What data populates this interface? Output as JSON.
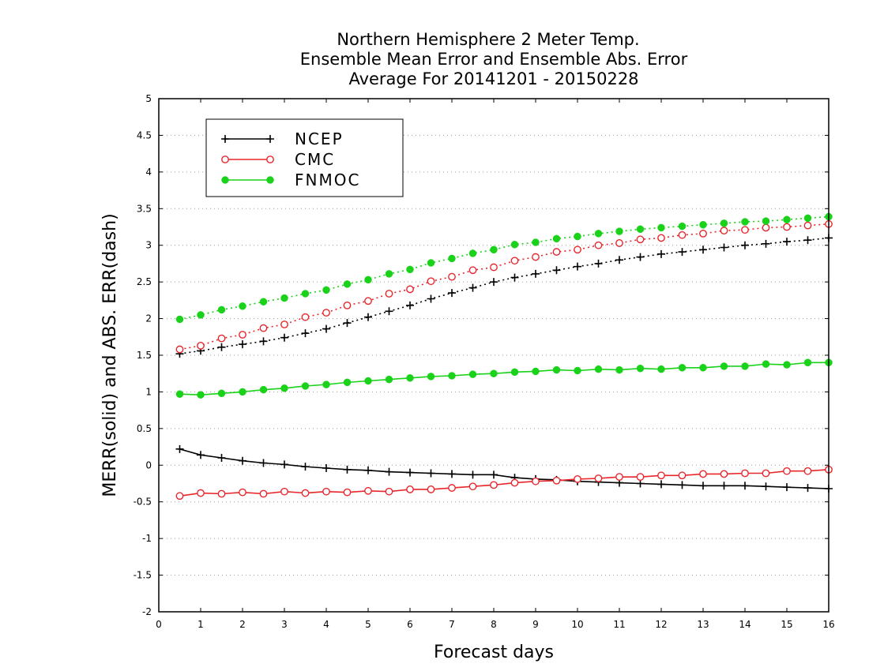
{
  "chart_data": {
    "type": "line",
    "title": [
      "Northern Hemisphere 2 Meter Temp.",
      "Ensemble Mean Error and Ensemble Abs. Error",
      "Average For 20141201 - 20150228"
    ],
    "xlabel": "Forecast days",
    "ylabel": "MERR(solid) and ABS. ERR(dash)",
    "xlim": [
      0,
      16
    ],
    "ylim": [
      -2,
      5
    ],
    "xticks": [
      0,
      1,
      2,
      3,
      4,
      5,
      6,
      7,
      8,
      9,
      10,
      11,
      12,
      13,
      14,
      15,
      16
    ],
    "yticks": [
      -2,
      -1.5,
      -1,
      -0.5,
      0,
      0.5,
      1,
      1.5,
      2,
      2.5,
      3,
      3.5,
      4,
      4.5,
      5
    ],
    "grid": "dotted horizontal",
    "legend_position": "top-left",
    "x": [
      0.5,
      1,
      1.5,
      2,
      2.5,
      3,
      3.5,
      4,
      4.5,
      5,
      5.5,
      6,
      6.5,
      7,
      7.5,
      8,
      8.5,
      9,
      9.5,
      10,
      10.5,
      11,
      11.5,
      12,
      12.5,
      13,
      13.5,
      14,
      14.5,
      15,
      15.5,
      16
    ],
    "series": [
      {
        "name": "NCEP",
        "color": "#000000",
        "marker": "plus",
        "merr": [
          0.22,
          0.14,
          0.1,
          0.06,
          0.03,
          0.01,
          -0.02,
          -0.04,
          -0.06,
          -0.07,
          -0.09,
          -0.1,
          -0.11,
          -0.12,
          -0.13,
          -0.13,
          -0.17,
          -0.19,
          -0.2,
          -0.22,
          -0.23,
          -0.24,
          -0.25,
          -0.26,
          -0.27,
          -0.28,
          -0.28,
          -0.28,
          -0.29,
          -0.3,
          -0.31,
          -0.32
        ],
        "abserr": [
          1.52,
          1.56,
          1.61,
          1.65,
          1.69,
          1.74,
          1.8,
          1.86,
          1.94,
          2.02,
          2.1,
          2.18,
          2.27,
          2.35,
          2.42,
          2.5,
          2.56,
          2.61,
          2.66,
          2.71,
          2.75,
          2.8,
          2.84,
          2.88,
          2.91,
          2.94,
          2.97,
          3.0,
          3.02,
          3.05,
          3.07,
          3.1
        ]
      },
      {
        "name": "CMC",
        "color": "#e8262c",
        "marker": "open-circle",
        "merr": [
          -0.42,
          -0.38,
          -0.39,
          -0.37,
          -0.39,
          -0.36,
          -0.38,
          -0.36,
          -0.37,
          -0.35,
          -0.36,
          -0.33,
          -0.33,
          -0.31,
          -0.29,
          -0.27,
          -0.24,
          -0.22,
          -0.21,
          -0.19,
          -0.18,
          -0.16,
          -0.16,
          -0.14,
          -0.14,
          -0.12,
          -0.12,
          -0.11,
          -0.11,
          -0.08,
          -0.08,
          -0.06
        ],
        "abserr": [
          1.58,
          1.63,
          1.73,
          1.78,
          1.87,
          1.92,
          2.02,
          2.08,
          2.18,
          2.24,
          2.34,
          2.4,
          2.51,
          2.57,
          2.66,
          2.7,
          2.79,
          2.84,
          2.91,
          2.94,
          3.0,
          3.03,
          3.08,
          3.1,
          3.14,
          3.16,
          3.2,
          3.21,
          3.24,
          3.25,
          3.27,
          3.29
        ]
      },
      {
        "name": "FNMOC",
        "color": "#19d219",
        "marker": "filled-circle",
        "merr": [
          0.97,
          0.96,
          0.98,
          1.0,
          1.03,
          1.05,
          1.08,
          1.1,
          1.13,
          1.15,
          1.17,
          1.19,
          1.21,
          1.22,
          1.24,
          1.25,
          1.27,
          1.28,
          1.3,
          1.29,
          1.31,
          1.3,
          1.32,
          1.31,
          1.33,
          1.33,
          1.35,
          1.35,
          1.38,
          1.37,
          1.4,
          1.4
        ],
        "abserr": [
          1.99,
          2.05,
          2.12,
          2.17,
          2.23,
          2.28,
          2.34,
          2.39,
          2.47,
          2.53,
          2.61,
          2.67,
          2.76,
          2.82,
          2.89,
          2.94,
          3.01,
          3.04,
          3.09,
          3.12,
          3.16,
          3.19,
          3.22,
          3.24,
          3.26,
          3.28,
          3.3,
          3.32,
          3.33,
          3.35,
          3.37,
          3.39
        ]
      }
    ]
  }
}
